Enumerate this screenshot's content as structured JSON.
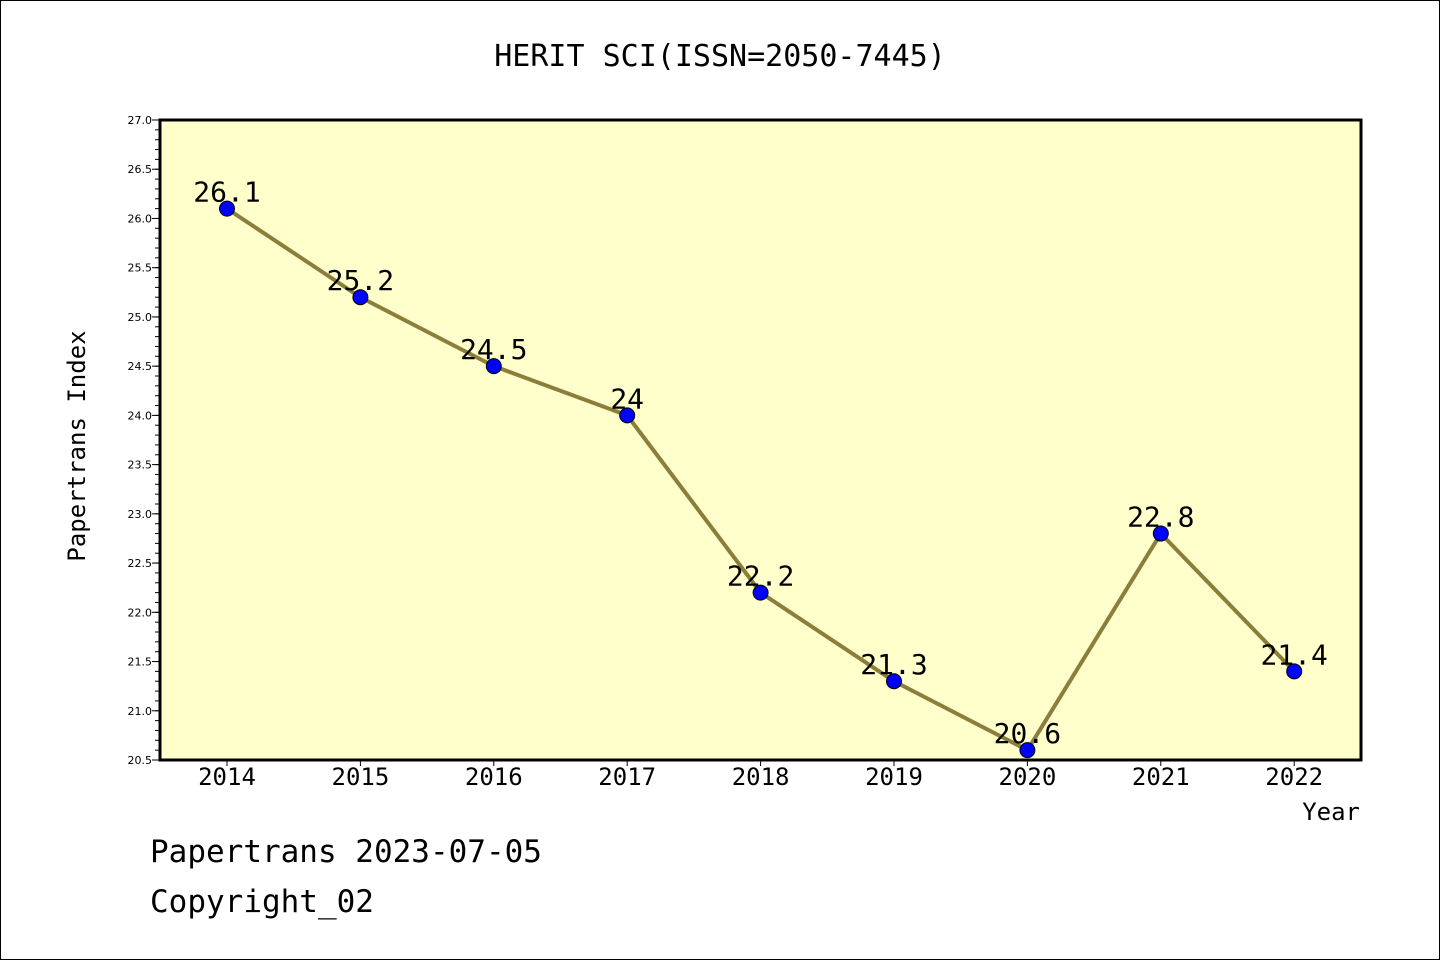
{
  "chart_data": {
    "type": "line",
    "title": "HERIT SCI(ISSN=2050-7445)",
    "xlabel": "Year",
    "ylabel": "Papertrans Index",
    "categories": [
      "2014",
      "2015",
      "2016",
      "2017",
      "2018",
      "2019",
      "2020",
      "2021",
      "2022"
    ],
    "values": [
      26.1,
      25.2,
      24.5,
      24,
      22.2,
      21.3,
      20.6,
      22.8,
      21.4
    ],
    "value_labels": [
      "26.1",
      "25.2",
      "24.5",
      "24",
      "22.2",
      "21.3",
      "20.6",
      "22.8",
      "21.4"
    ],
    "ylim": [
      20.5,
      27.0
    ],
    "yticks": [
      "20.5",
      "21.0",
      "21.5",
      "22.0",
      "22.5",
      "23.0",
      "23.5",
      "24.0",
      "24.5",
      "25.0",
      "25.5",
      "26.0",
      "26.5",
      "27.0"
    ],
    "grid": false,
    "legend": "none",
    "colors": {
      "plot_background": "#ffffcc",
      "line": "#8b7d3a",
      "marker": "#0000ff"
    }
  },
  "footer": {
    "line1": "Papertrans 2023-07-05",
    "line2": "Copyright_02"
  }
}
